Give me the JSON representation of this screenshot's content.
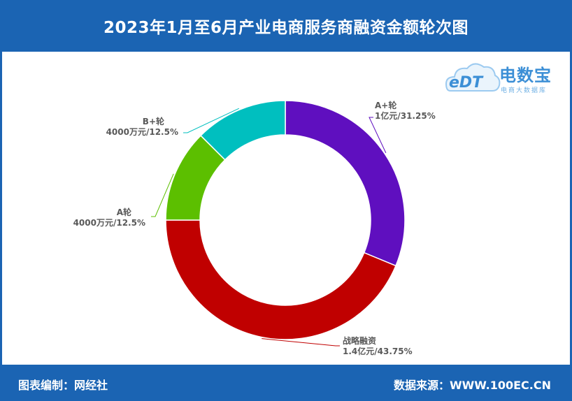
{
  "header": {
    "title": "2023年1月至6月产业电商服务商融资金额轮次图"
  },
  "footer": {
    "left": "图表编制：网经社",
    "right": "数据来源：WWW.100EC.CN"
  },
  "logo": {
    "mark": "eDT",
    "name": "电数宝",
    "subtitle": "电商大数据库"
  },
  "chart_data": {
    "type": "pie",
    "variant": "donut",
    "title": "2023年1月至6月产业电商服务商融资金额轮次图",
    "slices": [
      {
        "name": "A+轮",
        "amount": "1亿元",
        "percent": 31.25,
        "percent_label": "31.25%",
        "color": "#5f0fbf"
      },
      {
        "name": "战略融资",
        "amount": "1.4亿元",
        "percent": 43.75,
        "percent_label": "43.75%",
        "color": "#c00000"
      },
      {
        "name": "A轮",
        "amount": "4000万元",
        "percent": 12.5,
        "percent_label": "12.5%",
        "color": "#5cbf00"
      },
      {
        "name": "B+轮",
        "amount": "4000万元",
        "percent": 12.5,
        "percent_label": "12.5%",
        "color": "#00bfbf"
      }
    ]
  }
}
